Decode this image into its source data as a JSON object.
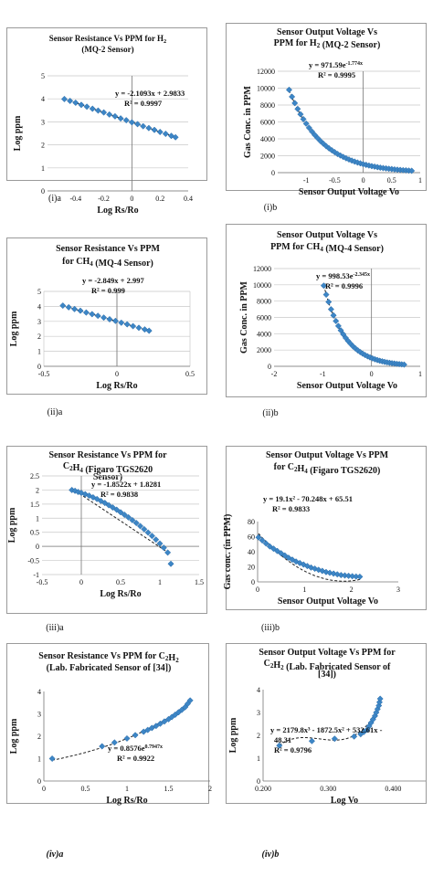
{
  "chart_data": [
    {
      "id": "c1",
      "caption": "(i)a",
      "type": "scatter",
      "title_lines": [
        [
          {
            "t": "Sensor Resistance Vs PPM for H"
          },
          {
            "t": "2",
            "sub": true
          }
        ],
        [
          {
            "t": "(MQ-2 Sensor)"
          }
        ]
      ],
      "xlabel": "Log Rs/Ro",
      "ylabel": "Log ppm",
      "xlim": [
        -0.6,
        0.4
      ],
      "ylim": [
        0,
        5
      ],
      "xticks": [
        "-0.4",
        "-0.2",
        "0",
        "0.2",
        "0.4"
      ],
      "xtick_vals": [
        -0.4,
        -0.2,
        0,
        0.2,
        0.4
      ],
      "yticks": [
        "0",
        "1",
        "2",
        "3",
        "4",
        "5"
      ],
      "ytick_vals": [
        0,
        1,
        2,
        3,
        4,
        5
      ],
      "grid": "horizontal",
      "equation": "y = -2.1093x + 2.9833",
      "r2": "R² = 0.9997",
      "fit": {
        "kind": "linear",
        "a": -2.1093,
        "b": 2.9833
      },
      "series": [
        {
          "x": [
            -0.48,
            -0.44,
            -0.4,
            -0.36,
            -0.32,
            -0.28,
            -0.24,
            -0.2,
            -0.16,
            -0.12,
            -0.08,
            -0.04,
            0.0,
            0.04,
            0.08,
            0.12,
            0.16,
            0.2,
            0.24,
            0.28,
            0.31
          ],
          "y": [
            3.99,
            3.91,
            3.83,
            3.74,
            3.66,
            3.57,
            3.49,
            3.41,
            3.32,
            3.24,
            3.15,
            3.07,
            2.98,
            2.9,
            2.81,
            2.73,
            2.65,
            2.56,
            2.48,
            2.39,
            2.33
          ]
        }
      ]
    },
    {
      "id": "c2",
      "caption": "(i)b",
      "type": "scatter",
      "title_lines": [
        [
          {
            "t": "Sensor Output Voltage Vs"
          }
        ],
        [
          {
            "t": "PPM  for H"
          },
          {
            "t": "2",
            "sub": true
          },
          {
            "t": " (MQ-2 Sensor)"
          }
        ]
      ],
      "xlabel": "Sensor Output Voltage Vo",
      "ylabel": "Gas Conc. in PPM",
      "xlim": [
        -1.5,
        1.0
      ],
      "ylim": [
        0,
        12000
      ],
      "xticks": [
        "-1",
        "-0.5",
        "0",
        "0.5",
        "1"
      ],
      "xtick_vals": [
        -1,
        -0.5,
        0,
        0.5,
        1
      ],
      "yticks": [
        "0",
        "2000",
        "4000",
        "6000",
        "8000",
        "10000",
        "12000"
      ],
      "ytick_vals": [
        0,
        2000,
        4000,
        6000,
        8000,
        10000,
        12000
      ],
      "grid": "horizontal",
      "equation": "y = 971.59e",
      "eq_sup": "-1.774x",
      "r2": "R² = 0.9995",
      "fit": {
        "kind": "exp",
        "a": 971.59,
        "b": -1.774
      },
      "series": [
        {
          "x": [
            -1.3,
            -1.25,
            -1.2,
            -1.15,
            -1.1,
            -1.05,
            -1.0,
            -0.95,
            -0.9,
            -0.85,
            -0.8,
            -0.75,
            -0.7,
            -0.65,
            -0.6,
            -0.55,
            -0.5,
            -0.45,
            -0.4,
            -0.35,
            -0.3,
            -0.25,
            -0.2,
            -0.15,
            -0.1,
            -0.05,
            0.0,
            0.05,
            0.1,
            0.15,
            0.2,
            0.25,
            0.3,
            0.35,
            0.4,
            0.45,
            0.5,
            0.55,
            0.6,
            0.65,
            0.7,
            0.75,
            0.8,
            0.85
          ],
          "y": [
            9800,
            8980,
            8230,
            7540,
            6910,
            6330,
            5800,
            5310,
            4870,
            4460,
            4090,
            3740,
            3430,
            3140,
            2880,
            2640,
            2420,
            2210,
            2030,
            1860,
            1700,
            1560,
            1430,
            1310,
            1200,
            1100,
            1000,
            920,
            840,
            770,
            710,
            650,
            590,
            540,
            500,
            460,
            420,
            380,
            350,
            320,
            290,
            270,
            240,
            220
          ]
        }
      ]
    },
    {
      "id": "c3",
      "caption": "(ii)a",
      "type": "scatter",
      "title_lines": [
        [
          {
            "t": "Sensor Resistance Vs PPM"
          }
        ],
        [
          {
            "t": "for CH"
          },
          {
            "t": "4",
            "sub": true
          },
          {
            "t": " (MQ-4 Sensor)"
          }
        ]
      ],
      "xlabel": "Log Rs/Ro",
      "ylabel": "Log ppm",
      "xlim": [
        -0.5,
        0.5
      ],
      "ylim": [
        0,
        5
      ],
      "xticks": [
        "-0.5",
        "0",
        "0.5"
      ],
      "xtick_vals": [
        -0.5,
        0,
        0.5
      ],
      "yticks": [
        "0",
        "1",
        "2",
        "3",
        "4",
        "5"
      ],
      "ytick_vals": [
        0,
        1,
        2,
        3,
        4,
        5
      ],
      "grid": "both",
      "equation": "y = -2.849x + 2.997",
      "r2": "R² = 0.999",
      "fit": {
        "kind": "linear",
        "a": -2.849,
        "b": 2.997
      },
      "series": [
        {
          "x": [
            -0.37,
            -0.33,
            -0.29,
            -0.25,
            -0.21,
            -0.17,
            -0.13,
            -0.09,
            -0.05,
            -0.01,
            0.03,
            0.07,
            0.11,
            0.15,
            0.19,
            0.22
          ],
          "y": [
            4.05,
            3.94,
            3.82,
            3.71,
            3.59,
            3.48,
            3.37,
            3.25,
            3.14,
            3.03,
            2.91,
            2.8,
            2.68,
            2.57,
            2.46,
            2.37
          ]
        }
      ]
    },
    {
      "id": "c4",
      "caption": "(ii)b",
      "type": "scatter",
      "title_lines": [
        [
          {
            "t": "Sensor Output Voltage Vs"
          }
        ],
        [
          {
            "t": "PPM  for CH"
          },
          {
            "t": "4",
            "sub": true
          },
          {
            "t": " (MQ-4 Sensor)"
          }
        ]
      ],
      "xlabel": "Sensor Output Voltage Vo",
      "ylabel": "Gas Conc. in PPM",
      "xlim": [
        -2,
        1
      ],
      "ylim": [
        0,
        12000
      ],
      "xticks": [
        "-2",
        "-1",
        "0",
        "1"
      ],
      "xtick_vals": [
        -2,
        -1,
        0,
        1
      ],
      "yticks": [
        "0",
        "2000",
        "4000",
        "6000",
        "8000",
        "10000",
        "12000"
      ],
      "ytick_vals": [
        0,
        2000,
        4000,
        6000,
        8000,
        10000,
        12000
      ],
      "grid": "horizontal",
      "equation": "y = 998.53e",
      "eq_sup": "-2.345x",
      "r2": "R² = 0.9996",
      "fit": {
        "kind": "exp",
        "a": 998.53,
        "b": -2.345
      },
      "series": [
        {
          "x": [
            -0.98,
            -0.93,
            -0.88,
            -0.83,
            -0.78,
            -0.73,
            -0.68,
            -0.63,
            -0.58,
            -0.53,
            -0.48,
            -0.43,
            -0.38,
            -0.33,
            -0.28,
            -0.23,
            -0.18,
            -0.13,
            -0.08,
            -0.03,
            0.02,
            0.07,
            0.12,
            0.17,
            0.22,
            0.27,
            0.32,
            0.37,
            0.42,
            0.47,
            0.52,
            0.57,
            0.62,
            0.67
          ],
          "y": [
            9900,
            8800,
            7900,
            7000,
            6250,
            5560,
            4950,
            4410,
            3930,
            3490,
            3110,
            2770,
            2460,
            2190,
            1950,
            1740,
            1550,
            1380,
            1230,
            1090,
            970,
            860,
            770,
            680,
            610,
            540,
            480,
            430,
            380,
            340,
            300,
            270,
            240,
            210
          ]
        }
      ]
    },
    {
      "id": "c5",
      "caption": "(iii)a",
      "type": "scatter",
      "title_lines": [
        [
          {
            "t": "Sensor Resistance Vs PPM for"
          }
        ],
        [
          {
            "t": "C"
          },
          {
            "t": "2",
            "sub": true
          },
          {
            "t": "H"
          },
          {
            "t": "4",
            "sub": true
          },
          {
            "t": " (Figaro TGS2620"
          }
        ],
        [
          {
            "t": "Sensor)"
          }
        ]
      ],
      "xlabel": "Log Rs/Ro",
      "ylabel": "Log ppm",
      "xlim": [
        -0.5,
        1.5
      ],
      "ylim": [
        -1,
        2.5
      ],
      "xticks": [
        "-0.5",
        "0",
        "0.5",
        "1",
        "1.5"
      ],
      "xtick_vals": [
        -0.5,
        0,
        0.5,
        1,
        1.5
      ],
      "yticks": [
        "-1",
        "-0.5",
        "0",
        "0.5",
        "1",
        "1.5",
        "2",
        "2.5"
      ],
      "ytick_vals": [
        -1,
        -0.5,
        0,
        0.5,
        1,
        1.5,
        2,
        2.5
      ],
      "grid": "horizontal",
      "equation": "y = -1.8522x + 1.8281",
      "r2": "R² = 0.9838",
      "fit": {
        "kind": "linear",
        "a": -1.8522,
        "b": 1.8281
      },
      "series": [
        {
          "x": [
            -0.12,
            -0.08,
            -0.04,
            0.0,
            0.05,
            0.1,
            0.15,
            0.2,
            0.25,
            0.3,
            0.35,
            0.4,
            0.45,
            0.5,
            0.55,
            0.6,
            0.65,
            0.7,
            0.75,
            0.8,
            0.85,
            0.9,
            0.95,
            1.0,
            1.05,
            1.1,
            1.14
          ],
          "y": [
            2.0,
            1.97,
            1.93,
            1.9,
            1.85,
            1.8,
            1.74,
            1.68,
            1.61,
            1.54,
            1.46,
            1.38,
            1.3,
            1.21,
            1.12,
            1.03,
            0.93,
            0.83,
            0.72,
            0.61,
            0.49,
            0.37,
            0.24,
            0.1,
            -0.05,
            -0.22,
            -0.62
          ]
        }
      ]
    },
    {
      "id": "c6",
      "caption": "(iii)b",
      "type": "scatter",
      "title_lines": [
        [
          {
            "t": "Sensor Output Voltage Vs PPM"
          }
        ],
        [
          {
            "t": "for C"
          },
          {
            "t": "2",
            "sub": true
          },
          {
            "t": "H"
          },
          {
            "t": "4",
            "sub": true
          },
          {
            "t": " (Figaro TGS2620)"
          }
        ]
      ],
      "xlabel": "Sensor Output Voltage Vo",
      "ylabel": "Gas conc. (in PPM)",
      "xlim": [
        0,
        3
      ],
      "ylim": [
        0,
        80
      ],
      "xticks": [
        "0",
        "1",
        "2",
        "3"
      ],
      "xtick_vals": [
        0,
        1,
        2,
        3
      ],
      "yticks": [
        "0",
        "20",
        "40",
        "60",
        "80"
      ],
      "ytick_vals": [
        0,
        20,
        40,
        60,
        80
      ],
      "grid": "none",
      "equation": "y = 19.1x² - 70.248x + 65.51",
      "r2": "R² = 0.9833",
      "fit": {
        "kind": "poly",
        "coef": [
          65.51,
          -70.248,
          19.1
        ]
      },
      "series": [
        {
          "x": [
            0.02,
            0.1,
            0.18,
            0.26,
            0.34,
            0.42,
            0.5,
            0.58,
            0.66,
            0.74,
            0.82,
            0.9,
            0.98,
            1.06,
            1.14,
            1.22,
            1.3,
            1.38,
            1.46,
            1.54,
            1.62,
            1.7,
            1.78,
            1.86,
            1.94,
            2.02,
            2.1,
            2.18
          ],
          "y": [
            59,
            55,
            51,
            47,
            44,
            41,
            38,
            35,
            32,
            29.5,
            27,
            25,
            23,
            21,
            19,
            17.5,
            16,
            14.5,
            13,
            12,
            11,
            10,
            9,
            8.5,
            8,
            7.5,
            7,
            6.8
          ]
        }
      ]
    },
    {
      "id": "c7",
      "caption": "(iv)a",
      "caption_italic": true,
      "type": "scatter",
      "title_lines": [
        [
          {
            "t": "Sensor Resistance Vs PPM for C"
          },
          {
            "t": "2",
            "sub": true
          },
          {
            "t": "H"
          },
          {
            "t": "2",
            "sub": true
          }
        ],
        [
          {
            "t": "(Lab. Fabricated Sensor of [34])"
          }
        ]
      ],
      "xlabel": "Log Rs/Ro",
      "ylabel": "Log ppm",
      "xlim": [
        0,
        2
      ],
      "ylim": [
        0,
        4
      ],
      "xticks": [
        "0",
        "0.5",
        "1",
        "1.5",
        "2"
      ],
      "xtick_vals": [
        0,
        0.5,
        1,
        1.5,
        2
      ],
      "yticks": [
        "0",
        "1",
        "2",
        "3",
        "4"
      ],
      "ytick_vals": [
        0,
        1,
        2,
        3,
        4
      ],
      "grid": "none",
      "equation": "y = 0.8576e",
      "eq_sup": "0.7947x",
      "r2": "R² = 0.9922",
      "fit": {
        "kind": "exp",
        "a": 0.8576,
        "b": 0.7947
      },
      "series": [
        {
          "x": [
            0.1,
            0.7,
            0.85,
            1.0,
            1.1,
            1.2,
            1.25,
            1.3,
            1.35,
            1.4,
            1.45,
            1.5,
            1.54,
            1.58,
            1.62,
            1.66,
            1.7,
            1.73,
            1.76
          ],
          "y": [
            1.0,
            1.55,
            1.72,
            1.9,
            2.05,
            2.2,
            2.28,
            2.37,
            2.46,
            2.56,
            2.66,
            2.76,
            2.86,
            2.96,
            3.07,
            3.18,
            3.3,
            3.45,
            3.6
          ]
        }
      ]
    },
    {
      "id": "c8",
      "caption": "(iv)b",
      "caption_italic": true,
      "type": "scatter",
      "title_lines": [
        [
          {
            "t": "Sensor Output Voltage Vs PPM for"
          }
        ],
        [
          {
            "t": "C"
          },
          {
            "t": "2",
            "sub": true
          },
          {
            "t": "H"
          },
          {
            "t": "2",
            "sub": true
          },
          {
            "t": " (Lab. Fabricated Sensor of"
          }
        ],
        [
          {
            "t": "[34])"
          }
        ]
      ],
      "xlabel": "Log Vo",
      "ylabel": "Log ppm",
      "xlim": [
        0.2,
        0.45
      ],
      "ylim": [
        0,
        4
      ],
      "xticks": [
        "0.200",
        "0.300",
        "0.400"
      ],
      "xtick_vals": [
        0.2,
        0.3,
        0.4
      ],
      "yticks": [
        "0",
        "1",
        "2",
        "3",
        "4"
      ],
      "ytick_vals": [
        0,
        1,
        2,
        3,
        4
      ],
      "grid": "none",
      "equation": "y = 2179.8x³ - 1872.5x² + 532.61x -",
      "equation2": "48.31",
      "r2": "R² = 0.9796",
      "fit": {
        "kind": "poly",
        "coef": [
          -48.31,
          532.61,
          -1872.5,
          2179.8
        ]
      },
      "series": [
        {
          "x": [
            0.225,
            0.275,
            0.31,
            0.34,
            0.35,
            0.355,
            0.36,
            0.363,
            0.366,
            0.369,
            0.372,
            0.374,
            0.376,
            0.378,
            0.379,
            0.38
          ],
          "y": [
            1.55,
            1.75,
            1.85,
            1.95,
            2.05,
            2.15,
            2.25,
            2.4,
            2.55,
            2.7,
            2.85,
            3.0,
            3.15,
            3.3,
            3.45,
            3.6
          ]
        }
      ]
    }
  ],
  "colors": {
    "marker": "#3d86c6",
    "marker_stroke": "#2a6aa6",
    "fit_line": "#222222",
    "grid": "#c8c8c8",
    "axis": "#777777"
  }
}
